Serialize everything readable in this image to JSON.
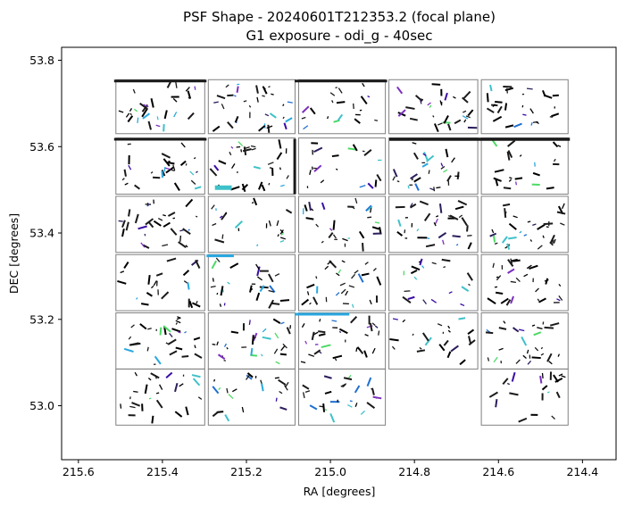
{
  "chart_data": {
    "type": "scatter",
    "title": "PSF Shape - 20240601T212353.2 (focal plane)",
    "subtitle": "G1 exposure - odi_g - 40sec",
    "xlabel": "RA [degrees]",
    "ylabel": "DEC [degrees]",
    "xlim": [
      215.64,
      214.32
    ],
    "ylim": [
      52.875,
      53.83
    ],
    "x_inverted": true,
    "grid": false,
    "x_ticks": [
      {
        "value": 215.6,
        "label": "215.6"
      },
      {
        "value": 215.4,
        "label": "215.4"
      },
      {
        "value": 215.2,
        "label": "215.2"
      },
      {
        "value": 215.0,
        "label": "215.0"
      },
      {
        "value": 214.8,
        "label": "214.8"
      },
      {
        "value": 214.6,
        "label": "214.6"
      },
      {
        "value": 214.4,
        "label": "214.4"
      }
    ],
    "y_ticks": [
      {
        "value": 53.0,
        "label": "53.0"
      },
      {
        "value": 53.2,
        "label": "53.2"
      },
      {
        "value": 53.4,
        "label": "53.4"
      },
      {
        "value": 53.6,
        "label": "53.6"
      },
      {
        "value": 53.8,
        "label": "53.8"
      }
    ],
    "ota_grid": {
      "ra_edges": [
        215.515,
        215.295,
        215.08,
        214.865,
        214.645,
        214.43
      ],
      "dec_rows": [
        {
          "top": 53.755,
          "bottom": 53.63
        },
        {
          "top": 53.62,
          "bottom": 53.49
        },
        {
          "top": 53.485,
          "bottom": 53.355
        },
        {
          "top": 53.35,
          "bottom": 53.22
        },
        {
          "top": 53.215,
          "bottom": 53.085
        },
        {
          "top": 53.085,
          "bottom": 52.955
        }
      ],
      "missing": [
        [
          5,
          3
        ]
      ],
      "outline_color": "#808080"
    },
    "whisker_colors": [
      "#000000",
      "#1a1a1a",
      "#2b1d5c",
      "#3a0ca3",
      "#7b2fbe",
      "#1f6fd1",
      "#29a8e0",
      "#3ec1c9",
      "#4cd964"
    ]
  }
}
